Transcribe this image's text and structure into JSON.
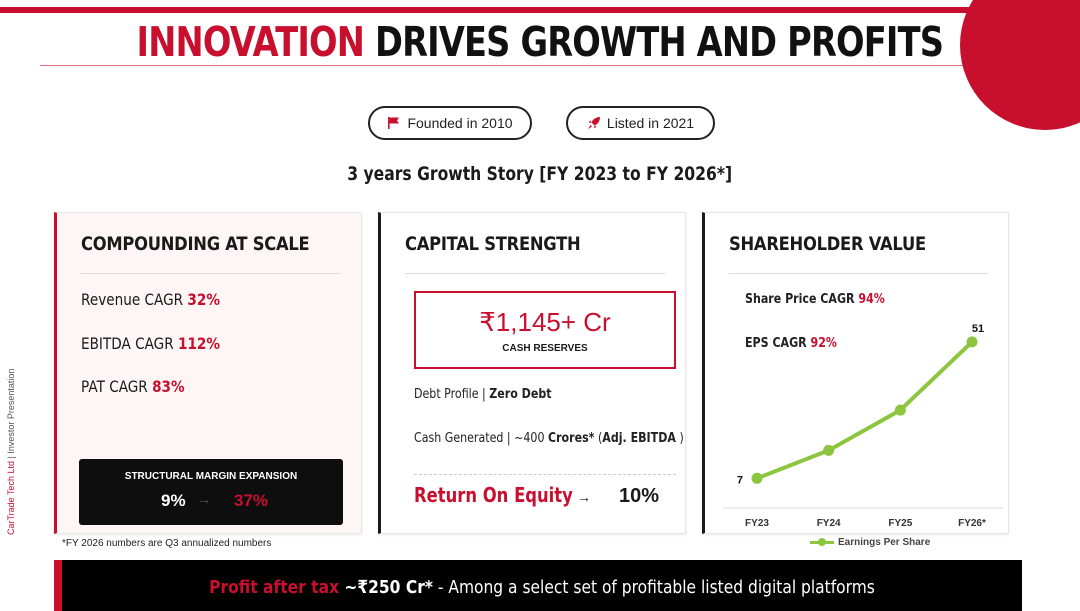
{
  "header": {
    "title_accent": "INNOVATION",
    "title_rest": " DRIVES GROWTH AND PROFITS"
  },
  "badges": {
    "founded": {
      "icon": "flag-icon",
      "label": "Founded in 2010"
    },
    "listed": {
      "icon": "rocket-icon",
      "label": "Listed in 2021"
    }
  },
  "subheading": "3 years Growth Story [FY 2023 to FY 2026*]",
  "side_label": {
    "company": "CarTrade Tech Ltd",
    "separator": " | ",
    "doc": "Investor Presentation"
  },
  "cards": {
    "compounding": {
      "title": "COMPOUNDING AT SCALE",
      "metrics": [
        {
          "label": "Revenue CAGR ",
          "value": "32%"
        },
        {
          "label": "EBITDA CAGR ",
          "value": "112%"
        },
        {
          "label": "PAT CAGR ",
          "value": "83%"
        }
      ],
      "margin": {
        "label": "STRUCTURAL MARGIN EXPANSION",
        "from": "9%",
        "arrow": "→",
        "to": "37%"
      }
    },
    "capital": {
      "title": "CAPITAL STRENGTH",
      "reserve_amount": "₹1,145+ Cr",
      "reserve_label": "CASH RESERVES",
      "debt_label": "Debt Profile | ",
      "debt_value": "Zero Debt",
      "cash_label": "Cash Generated | ~400 ",
      "cash_value": "Crores*",
      "cash_suffix": " (",
      "cash_note": "Adj. EBITDA",
      "cash_close": " )",
      "roe_label": "Return On Equity",
      "roe_arrow": "→",
      "roe_value": "10%"
    },
    "shareholder": {
      "title": "SHAREHOLDER VALUE",
      "metrics": [
        {
          "label": "Share Price CAGR ",
          "value": "94%"
        },
        {
          "label": "EPS CAGR ",
          "value": "92%"
        }
      ]
    }
  },
  "chart_data": {
    "type": "line",
    "categories": [
      "FY23",
      "FY24",
      "FY25",
      "FY26*"
    ],
    "series": [
      {
        "name": "Earnings Per Share",
        "values": [
          7,
          16,
          29,
          51
        ],
        "color": "#8cc63f"
      }
    ],
    "data_labels": {
      "first": "7",
      "last": "51"
    },
    "ylim": [
      0,
      60
    ],
    "grid": false,
    "legend": "bottom"
  },
  "footnote": "*FY 2026 numbers are Q3 annualized numbers",
  "banner": {
    "highlight": "Profit after tax",
    "value": " ~₹250 Cr*",
    "rest": " - Among a select set of profitable listed digital platforms"
  },
  "colors": {
    "accent": "#c8102e",
    "line": "#8cc63f",
    "dark": "#0e0e0e"
  }
}
